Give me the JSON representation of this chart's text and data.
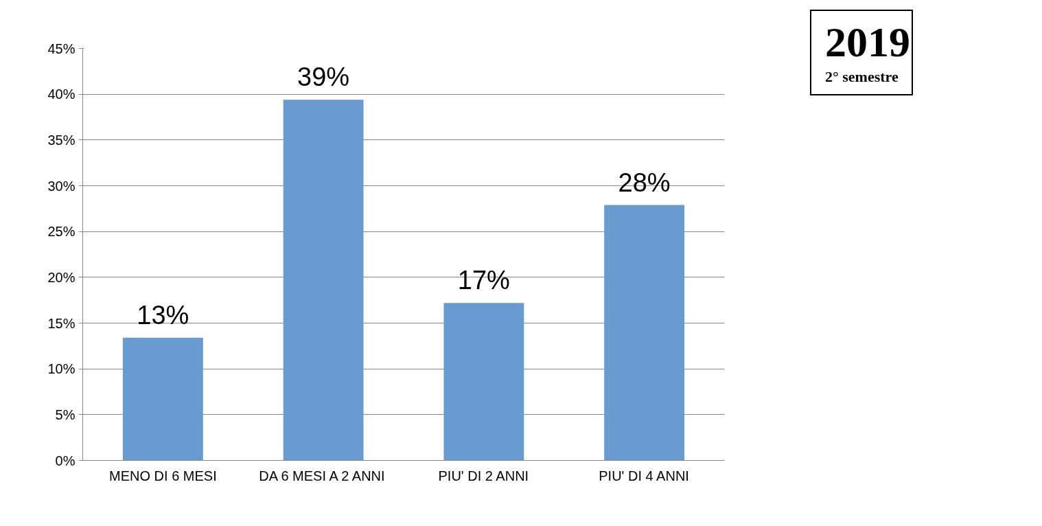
{
  "chart_data": {
    "type": "bar",
    "title": "2019",
    "subtitle": "2° semestre",
    "categories": [
      "MENO DI 6 MESI",
      "DA 6 MESI A 2 ANNI",
      "PIU' DI 2 ANNI",
      "PIU' DI 4 ANNI"
    ],
    "values": [
      13.4,
      39.4,
      17.2,
      27.9
    ],
    "value_labels": [
      "13%",
      "39%",
      "17%",
      "28%"
    ],
    "color": "#6a9bd0",
    "ylim": [
      0,
      45
    ],
    "yticks": [
      {
        "value": 0,
        "label": "0%"
      },
      {
        "value": 5,
        "label": "5%"
      },
      {
        "value": 10,
        "label": "10%"
      },
      {
        "value": 15,
        "label": "15%"
      },
      {
        "value": 20,
        "label": "20%"
      },
      {
        "value": 25,
        "label": "25%"
      },
      {
        "value": 30,
        "label": "30%"
      },
      {
        "value": 35,
        "label": "35%"
      },
      {
        "value": 40,
        "label": "40%"
      },
      {
        "value": 45,
        "label": "45%"
      }
    ],
    "grid": "y"
  }
}
